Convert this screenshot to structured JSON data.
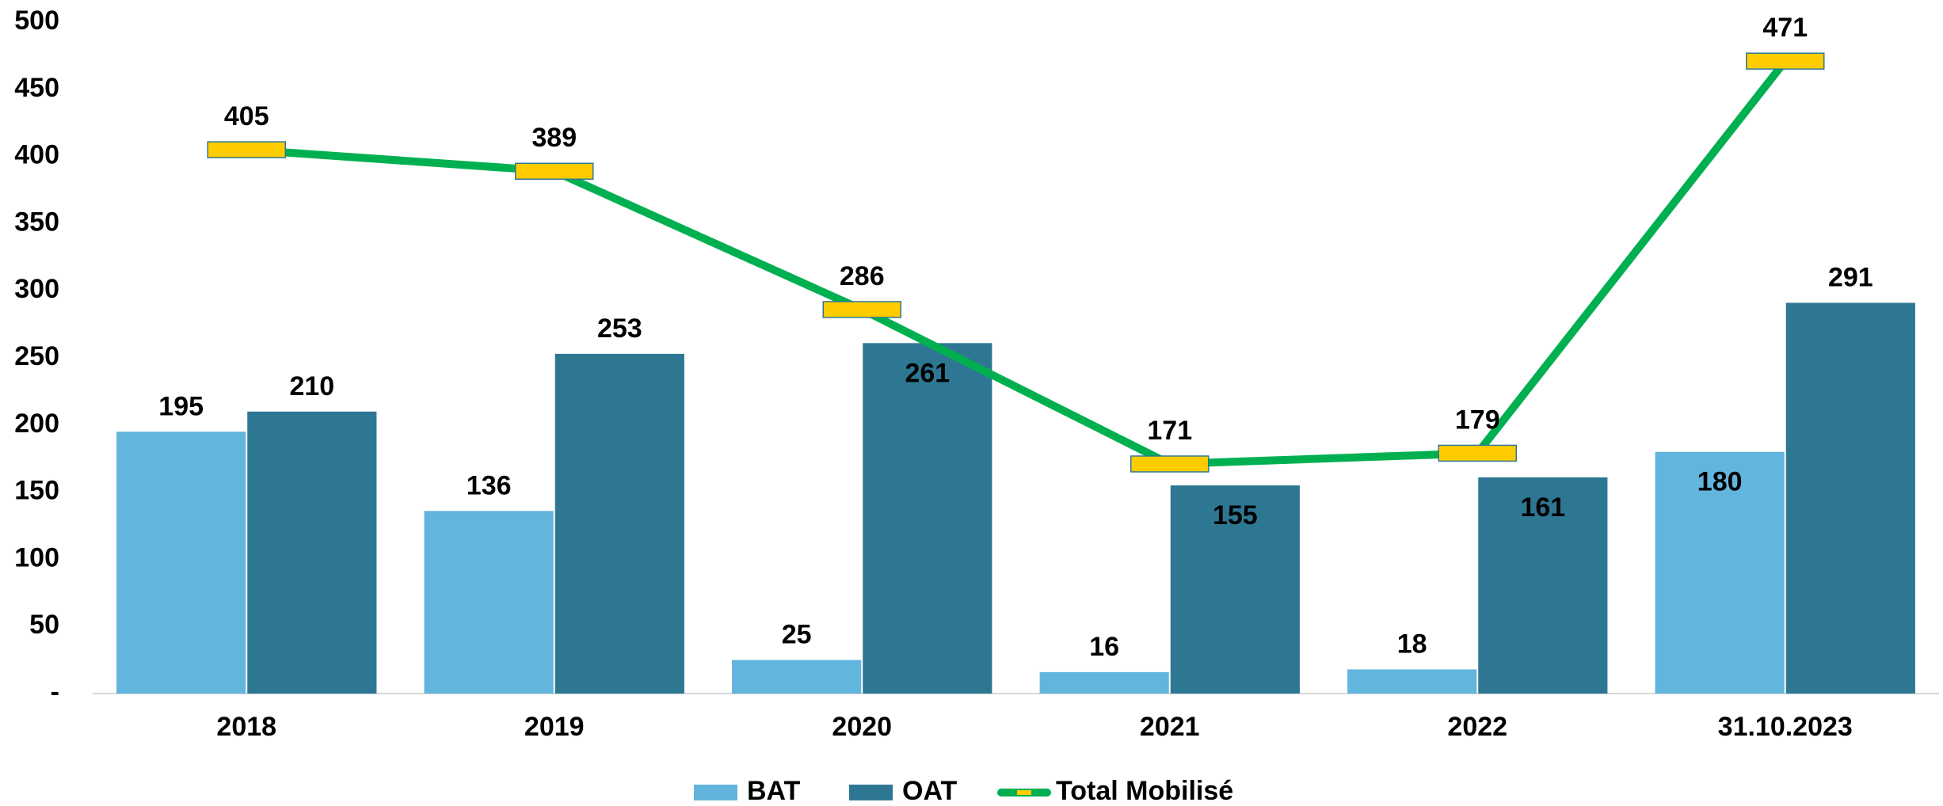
{
  "chart_data": {
    "type": "bar",
    "categories": [
      "2018",
      "2019",
      "2020",
      "2021",
      "2022",
      "31.10.2023"
    ],
    "series": [
      {
        "name": "BAT",
        "color": "#62b5dc",
        "values": [
          195,
          136,
          25,
          16,
          18,
          180
        ]
      },
      {
        "name": "OAT",
        "color": "#2e7793",
        "values": [
          210,
          253,
          261,
          155,
          161,
          291
        ]
      },
      {
        "name": "Total Mobilisé",
        "type": "line",
        "color": "#00b050",
        "marker_color": "#ffcc00",
        "values": [
          405,
          389,
          286,
          171,
          179,
          471
        ]
      }
    ],
    "ylim": [
      0,
      500
    ],
    "yticks": [
      {
        "value": 0,
        "label": "-"
      },
      50,
      100,
      150,
      200,
      250,
      300,
      350,
      400,
      450,
      500
    ],
    "grid": false,
    "legend": "bottom"
  }
}
